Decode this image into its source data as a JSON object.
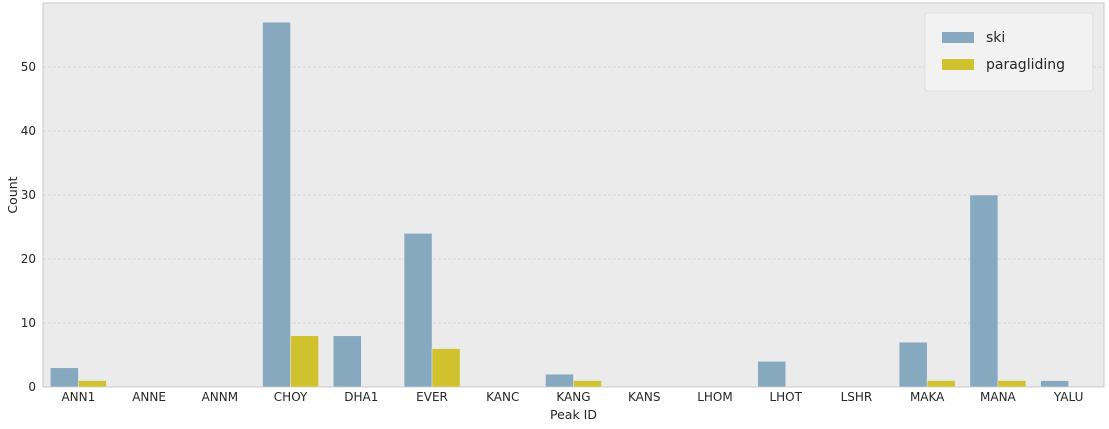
{
  "chart_data": {
    "type": "bar",
    "title": "",
    "xlabel": "Peak ID",
    "ylabel": "Count",
    "categories": [
      "ANN1",
      "ANNE",
      "ANNM",
      "CHOY",
      "DHA1",
      "EVER",
      "KANC",
      "KANG",
      "KANS",
      "LHOM",
      "LHOT",
      "LSHR",
      "MAKA",
      "MANA",
      "YALU"
    ],
    "series": [
      {
        "name": "ski",
        "color": "#86a9c0",
        "values": [
          3,
          0,
          0,
          57,
          8,
          24,
          0,
          2,
          0,
          0,
          4,
          0,
          7,
          30,
          1
        ]
      },
      {
        "name": "paragliding",
        "color": "#cfc22e",
        "values": [
          1,
          0,
          0,
          8,
          0,
          6,
          0,
          1,
          0,
          0,
          0,
          0,
          1,
          1,
          0
        ]
      }
    ],
    "ylim": [
      0,
      60
    ],
    "yticks": [
      0,
      10,
      20,
      30,
      40,
      50
    ],
    "grid": true,
    "legend": "top-right",
    "background": "#ebebeb",
    "grid_color": "#cfcfcf"
  }
}
